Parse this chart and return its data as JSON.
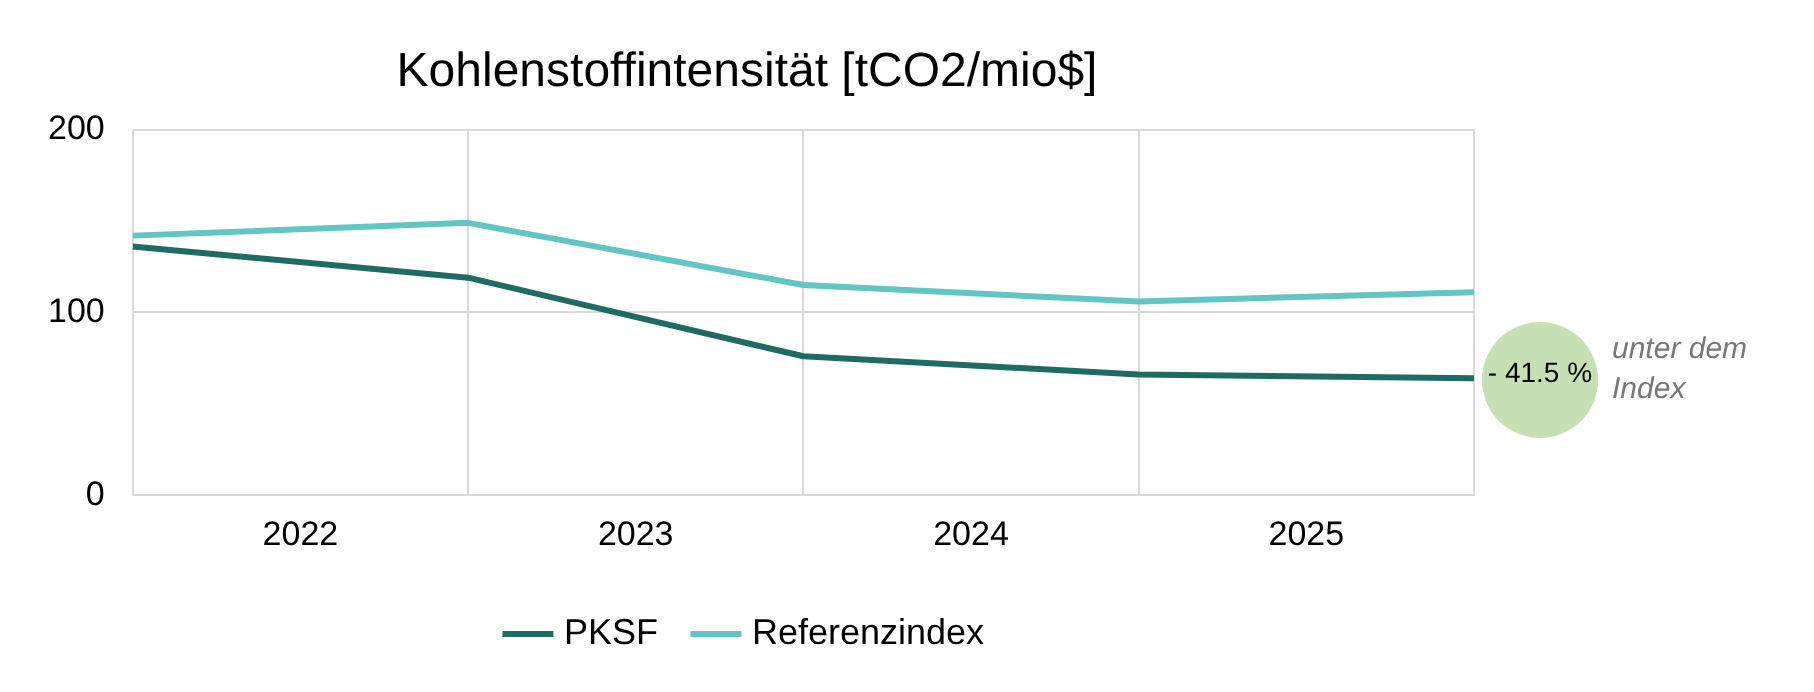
{
  "chart_data": {
    "type": "line",
    "title": "Kohlenstoffintensität [tCO2/mio$]",
    "x": [
      2022,
      2023,
      2024,
      2025,
      2026
    ],
    "xlim": [
      2022,
      2026
    ],
    "xticks": [
      {
        "value": 2022,
        "label": null
      },
      {
        "value": 2022.5,
        "label": "2022"
      },
      {
        "value": 2023,
        "label": null
      },
      {
        "value": 2023.5,
        "label": "2023"
      },
      {
        "value": 2024,
        "label": null
      },
      {
        "value": 2024.5,
        "label": "2024"
      },
      {
        "value": 2025,
        "label": null
      },
      {
        "value": 2025.5,
        "label": "2025"
      },
      {
        "value": 2026,
        "label": null
      }
    ],
    "ylim": [
      0,
      200
    ],
    "yticks": [
      0,
      100,
      200
    ],
    "grid": true,
    "legend": "bottom",
    "marker": "none",
    "line_style": "solid",
    "series": [
      {
        "name": "PKSF",
        "color": "#1d6b62",
        "values": [
          136,
          119,
          76,
          66,
          64
        ]
      },
      {
        "name": "Referenzindex",
        "color": "#62c5c5",
        "values": [
          142,
          149,
          115,
          106,
          111
        ]
      }
    ],
    "annotations": [
      "- 41.5 %",
      "unter dem Index"
    ]
  }
}
